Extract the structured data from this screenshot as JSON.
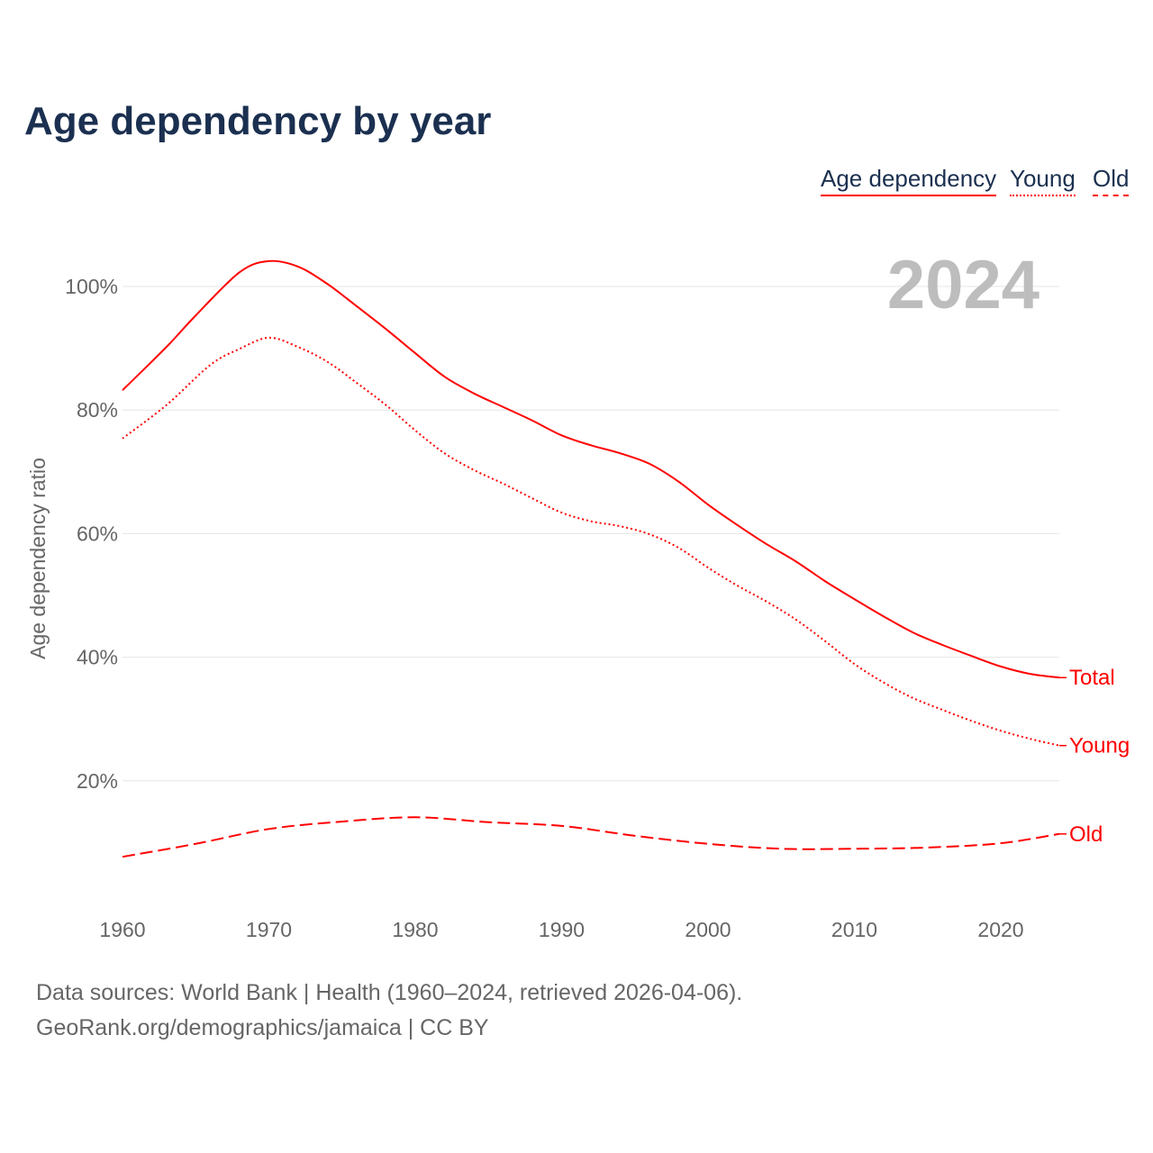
{
  "chart_data": {
    "type": "line",
    "title": "Age dependency by year",
    "xlabel": "",
    "ylabel": "Age dependency ratio",
    "xlim": [
      1960,
      2024
    ],
    "ylim": [
      0,
      110
    ],
    "yticks": [
      20,
      40,
      60,
      80,
      100
    ],
    "ytick_labels": [
      "20%",
      "40%",
      "60%",
      "80%",
      "100%"
    ],
    "xticks": [
      1960,
      1970,
      1980,
      1990,
      2000,
      2010,
      2020
    ],
    "xtick_labels": [
      "1960",
      "1970",
      "1980",
      "1990",
      "2000",
      "2010",
      "2020"
    ],
    "grid": true,
    "legend_position": "top-right",
    "year_label": "2024",
    "legend": [
      "Age dependency",
      "Young",
      "Old"
    ],
    "series": [
      {
        "name": "Total",
        "label": "Total",
        "style": "solid",
        "x": [
          1960,
          1963,
          1965,
          1968,
          1970,
          1972,
          1974,
          1976,
          1978,
          1980,
          1982,
          1984,
          1986,
          1988,
          1990,
          1992,
          1994,
          1996,
          1998,
          2000,
          2002,
          2004,
          2006,
          2008,
          2010,
          2012,
          2014,
          2016,
          2018,
          2020,
          2022,
          2024
        ],
        "values": [
          83.2,
          90.2,
          95.3,
          102.3,
          104.1,
          103.2,
          100.4,
          96.8,
          93.1,
          89.2,
          85.4,
          82.7,
          80.5,
          78.3,
          75.9,
          74.3,
          73.0,
          71.3,
          68.4,
          64.7,
          61.4,
          58.3,
          55.5,
          52.3,
          49.4,
          46.6,
          44.0,
          42.0,
          40.2,
          38.5,
          37.3,
          36.7
        ]
      },
      {
        "name": "Young",
        "label": "Young",
        "style": "dotted",
        "x": [
          1960,
          1963,
          1966,
          1968,
          1970,
          1972,
          1974,
          1976,
          1978,
          1980,
          1982,
          1984,
          1986,
          1988,
          1990,
          1992,
          1994,
          1996,
          1998,
          2000,
          2002,
          2004,
          2006,
          2008,
          2010,
          2012,
          2014,
          2016,
          2018,
          2020,
          2022,
          2024
        ],
        "values": [
          75.4,
          80.8,
          87.3,
          89.9,
          91.7,
          90.2,
          87.8,
          84.4,
          80.8,
          76.7,
          73.0,
          70.3,
          68.1,
          65.7,
          63.4,
          62.0,
          61.2,
          59.9,
          57.7,
          54.5,
          51.6,
          49.0,
          46.1,
          42.6,
          38.9,
          35.9,
          33.4,
          31.5,
          29.7,
          28.1,
          26.8,
          25.7
        ]
      },
      {
        "name": "Old",
        "label": "Old",
        "style": "dashed",
        "x": [
          1960,
          1965,
          1970,
          1975,
          1980,
          1985,
          1990,
          1995,
          2000,
          2005,
          2010,
          2015,
          2020,
          2024
        ],
        "values": [
          7.7,
          9.8,
          12.2,
          13.4,
          14.1,
          13.3,
          12.7,
          11.1,
          9.8,
          9.0,
          9.0,
          9.2,
          9.9,
          11.4
        ]
      }
    ]
  },
  "footer": {
    "line1": "Data sources: World Bank | Health (1960–2024, retrieved 2026-04-06).",
    "line2": "GeoRank.org/demographics/jamaica | CC BY"
  },
  "colors": {
    "line": "#ff0000",
    "title": "#1b3050",
    "grid": "#e6e6e6",
    "year": "#bdbdbd"
  }
}
